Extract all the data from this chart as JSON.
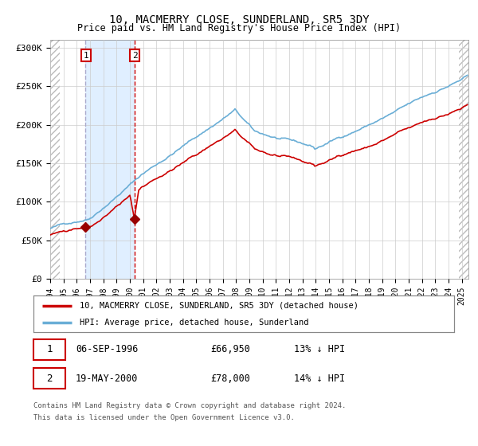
{
  "title": "10, MACMERRY CLOSE, SUNDERLAND, SR5 3DY",
  "subtitle": "Price paid vs. HM Land Registry's House Price Index (HPI)",
  "ylabel_ticks": [
    "£0",
    "£50K",
    "£100K",
    "£150K",
    "£200K",
    "£250K",
    "£300K"
  ],
  "ytick_values": [
    0,
    50000,
    100000,
    150000,
    200000,
    250000,
    300000
  ],
  "ylim": [
    0,
    310000
  ],
  "sale1_price": 66950,
  "sale1_label": "06-SEP-1996",
  "sale1_pct": "13% ↓ HPI",
  "sale2_price": 78000,
  "sale2_label": "19-MAY-2000",
  "sale2_pct": "14% ↓ HPI",
  "legend_line1": "10, MACMERRY CLOSE, SUNDERLAND, SR5 3DY (detached house)",
  "legend_line2": "HPI: Average price, detached house, Sunderland",
  "footnote1": "Contains HM Land Registry data © Crown copyright and database right 2024.",
  "footnote2": "This data is licensed under the Open Government Licence v3.0.",
  "hpi_color": "#6aaed6",
  "property_color": "#cc0000",
  "marker_color": "#990000",
  "vspan_color": "#ddeeff",
  "vline1_color": "#aaaacc",
  "vline2_color": "#cc0000",
  "hatch_color": "#bbbbbb",
  "grid_color": "#cccccc",
  "background_color": "#ffffff",
  "box_color": "#cc0000"
}
